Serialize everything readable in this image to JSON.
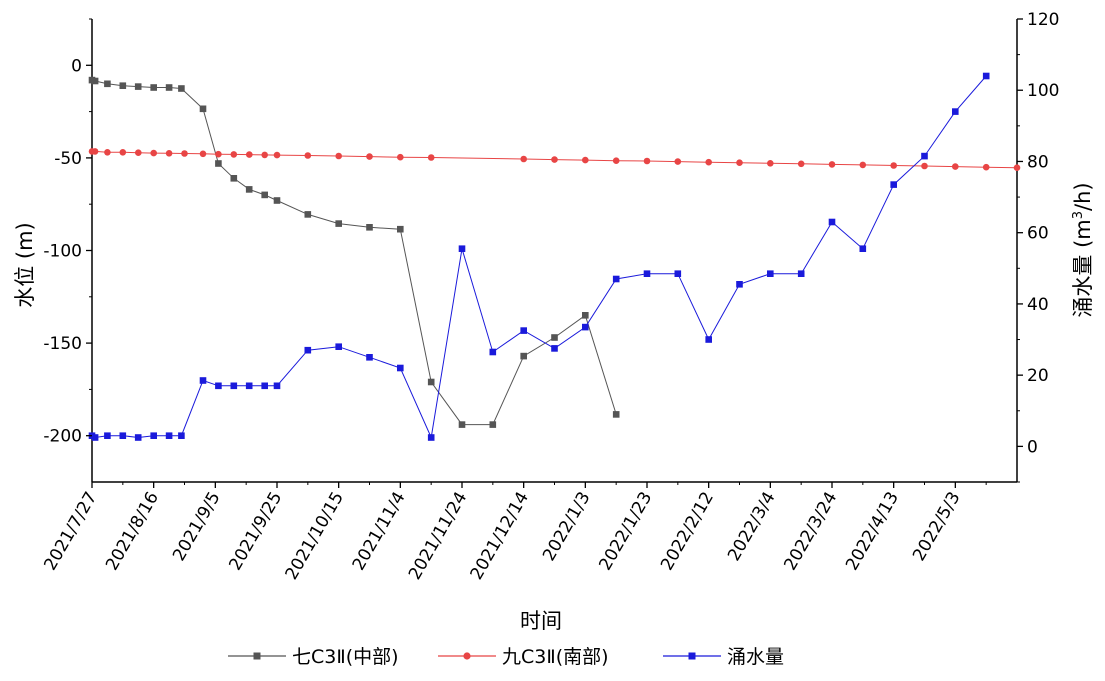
{
  "chart_data": {
    "type": "line",
    "xlabel": "时间",
    "ylabel_left": "水位 (m)",
    "ylabel_right_main": "涌水量 (m",
    "ylabel_right_sup": "3",
    "ylabel_right_tail": "/h)",
    "x_range": [
      "2021-07-27",
      "2022-05-23"
    ],
    "ylim_left": [
      -225,
      25
    ],
    "ylim_right": [
      -10,
      120
    ],
    "x_ticks": [
      "2021/7/27",
      "2021/8/16",
      "2021/9/5",
      "2021/9/25",
      "2021/10/15",
      "2021/11/4",
      "2021/11/24",
      "2021/12/14",
      "2022/1/3",
      "2022/1/23",
      "2022/2/12",
      "2022/3/4",
      "2022/3/24",
      "2022/4/13",
      "2022/5/3"
    ],
    "y_left_ticks": [
      "0",
      "-50",
      "-100",
      "-150",
      "-200"
    ],
    "y_left_tick_values": [
      0,
      -50,
      -100,
      -150,
      -200
    ],
    "y_right_ticks": [
      "0",
      "20",
      "40",
      "60",
      "80",
      "100",
      "120"
    ],
    "y_right_tick_values": [
      0,
      20,
      40,
      60,
      80,
      100,
      120
    ],
    "grid": false,
    "legend_position": "bottom",
    "series": [
      {
        "name": "七C3Ⅱ(中部)",
        "axis": "left",
        "color": "#555555",
        "marker": "square",
        "points": [
          [
            "2021-07-27",
            -8
          ],
          [
            "2021-07-28",
            -8.5
          ],
          [
            "2021-08-01",
            -10
          ],
          [
            "2021-08-06",
            -11
          ],
          [
            "2021-08-11",
            -11.5
          ],
          [
            "2021-08-16",
            -12
          ],
          [
            "2021-08-21",
            -12
          ],
          [
            "2021-08-25",
            -12.5
          ],
          [
            "2021-09-01",
            -23.5
          ],
          [
            "2021-09-06",
            -53
          ],
          [
            "2021-09-11",
            -61
          ],
          [
            "2021-09-16",
            -67
          ],
          [
            "2021-09-21",
            -70
          ],
          [
            "2021-09-25",
            -73
          ],
          [
            "2021-10-05",
            -80.5
          ],
          [
            "2021-10-15",
            -85.5
          ],
          [
            "2021-10-25",
            -87.5
          ],
          [
            "2021-11-04",
            -88.5
          ],
          [
            "2021-11-14",
            -171
          ],
          [
            "2021-11-24",
            -194
          ],
          [
            "2021-12-04",
            -194
          ],
          [
            "2021-12-14",
            -157
          ],
          [
            "2021-12-24",
            -147
          ],
          [
            "2022-01-03",
            -135
          ],
          [
            "2022-01-13",
            -188.5
          ]
        ]
      },
      {
        "name": "九C3Ⅱ(南部)",
        "axis": "left",
        "color": "#e84545",
        "marker": "circle",
        "points": [
          [
            "2021-07-27",
            -46.5
          ],
          [
            "2021-07-28",
            -46.5
          ],
          [
            "2021-08-01",
            -47
          ],
          [
            "2021-08-06",
            -47
          ],
          [
            "2021-08-11",
            -47.2
          ],
          [
            "2021-08-16",
            -47.4
          ],
          [
            "2021-08-21",
            -47.5
          ],
          [
            "2021-08-26",
            -47.6
          ],
          [
            "2021-09-01",
            -47.8
          ],
          [
            "2021-09-06",
            -48
          ],
          [
            "2021-09-11",
            -48.1
          ],
          [
            "2021-09-16",
            -48.2
          ],
          [
            "2021-09-21",
            -48.4
          ],
          [
            "2021-09-25",
            -48.5
          ],
          [
            "2021-10-05",
            -48.7
          ],
          [
            "2021-10-15",
            -49
          ],
          [
            "2021-10-25",
            -49.3
          ],
          [
            "2021-11-04",
            -49.6
          ],
          [
            "2021-11-14",
            -49.8
          ],
          [
            "2021-12-14",
            -50.6
          ],
          [
            "2021-12-24",
            -50.9
          ],
          [
            "2022-01-03",
            -51.2
          ],
          [
            "2022-01-13",
            -51.5
          ],
          [
            "2022-01-23",
            -51.7
          ],
          [
            "2022-02-02",
            -52
          ],
          [
            "2022-02-12",
            -52.3
          ],
          [
            "2022-02-22",
            -52.6
          ],
          [
            "2022-03-04",
            -52.9
          ],
          [
            "2022-03-14",
            -53.2
          ],
          [
            "2022-03-24",
            -53.5
          ],
          [
            "2022-04-03",
            -53.8
          ],
          [
            "2022-04-13",
            -54.1
          ],
          [
            "2022-04-23",
            -54.4
          ],
          [
            "2022-05-03",
            -54.7
          ],
          [
            "2022-05-13",
            -55
          ],
          [
            "2022-05-23",
            -55.3
          ]
        ]
      },
      {
        "name": "涌水量",
        "axis": "right",
        "color": "#1a1adb",
        "marker": "square",
        "points": [
          [
            "2021-07-27",
            3
          ],
          [
            "2021-07-28",
            2.5
          ],
          [
            "2021-08-01",
            3
          ],
          [
            "2021-08-06",
            3
          ],
          [
            "2021-08-11",
            2.5
          ],
          [
            "2021-08-16",
            3
          ],
          [
            "2021-08-21",
            3
          ],
          [
            "2021-08-25",
            3
          ],
          [
            "2021-09-01",
            18.5
          ],
          [
            "2021-09-06",
            17
          ],
          [
            "2021-09-11",
            17
          ],
          [
            "2021-09-16",
            17
          ],
          [
            "2021-09-21",
            17
          ],
          [
            "2021-09-25",
            17
          ],
          [
            "2021-10-05",
            27
          ],
          [
            "2021-10-15",
            28
          ],
          [
            "2021-10-25",
            25
          ],
          [
            "2021-11-04",
            22
          ],
          [
            "2021-11-14",
            2.5
          ],
          [
            "2021-11-24",
            55.5
          ],
          [
            "2021-12-04",
            26.5
          ],
          [
            "2021-12-14",
            32.5
          ],
          [
            "2021-12-24",
            27.5
          ],
          [
            "2022-01-03",
            33.5
          ],
          [
            "2022-01-13",
            47
          ],
          [
            "2022-01-23",
            48.5
          ],
          [
            "2022-02-02",
            48.5
          ],
          [
            "2022-02-12",
            30
          ],
          [
            "2022-02-22",
            45.5
          ],
          [
            "2022-03-04",
            48.5
          ],
          [
            "2022-03-14",
            48.5
          ],
          [
            "2022-03-24",
            63
          ],
          [
            "2022-04-03",
            55.5
          ],
          [
            "2022-04-13",
            73.5
          ],
          [
            "2022-04-23",
            81.5
          ],
          [
            "2022-05-03",
            94
          ],
          [
            "2022-05-13",
            104
          ]
        ]
      }
    ]
  }
}
